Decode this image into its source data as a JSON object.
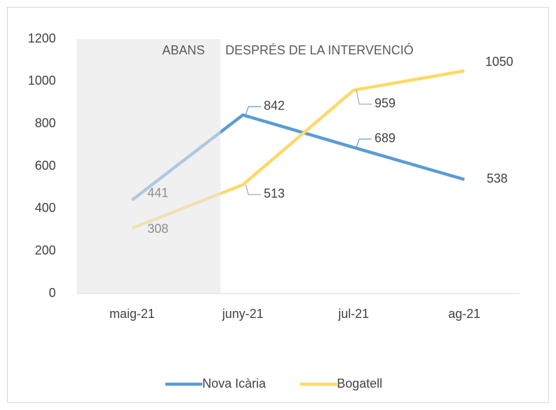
{
  "chart_data": {
    "type": "line",
    "annotations": [
      "ABANS",
      "DESPRÉS DE LA INTERVENCIÓ"
    ],
    "categories": [
      "maig-21",
      "juny-21",
      "jul-21",
      "ag-21"
    ],
    "series": [
      {
        "name": "Nova Icària",
        "color": "#5b9bd5",
        "values": [
          441,
          842,
          689,
          538
        ]
      },
      {
        "name": "Bogatell",
        "color": "#ffd966",
        "values": [
          308,
          513,
          959,
          1050
        ]
      }
    ],
    "ylim": [
      0,
      1200
    ],
    "yticks": [
      0,
      200,
      400,
      600,
      800,
      1000,
      1200
    ],
    "grid": false,
    "legend": "bottom"
  }
}
